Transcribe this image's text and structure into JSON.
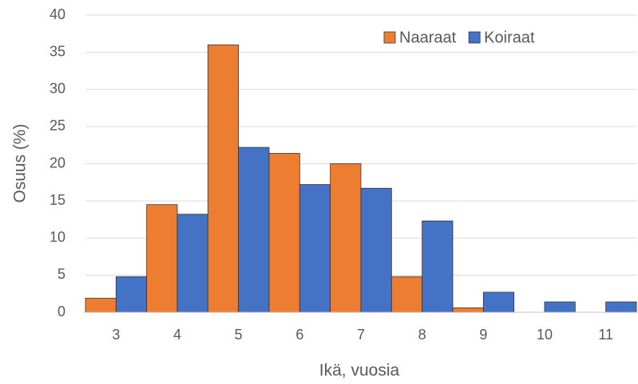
{
  "chart_data": {
    "type": "bar",
    "x_label": "Ikä, vuosia",
    "y_label": "Osuus (%)",
    "categories": [
      "3",
      "4",
      "5",
      "6",
      "7",
      "8",
      "9",
      "10",
      "11"
    ],
    "series": [
      {
        "name": "Naaraat",
        "color": "#ed7d31",
        "values": [
          1.9,
          14.5,
          36,
          21.4,
          20,
          4.8,
          0.6,
          0,
          0
        ]
      },
      {
        "name": "Koiraat",
        "color": "#4472c4",
        "values": [
          4.8,
          13.2,
          22.2,
          17.2,
          16.7,
          12.3,
          2.7,
          1.4,
          1.4
        ]
      }
    ],
    "ylim": [
      0,
      40
    ],
    "yticks": [
      0,
      5,
      10,
      15,
      20,
      25,
      30,
      35,
      40
    ],
    "grid": true,
    "legend": "upper right"
  }
}
